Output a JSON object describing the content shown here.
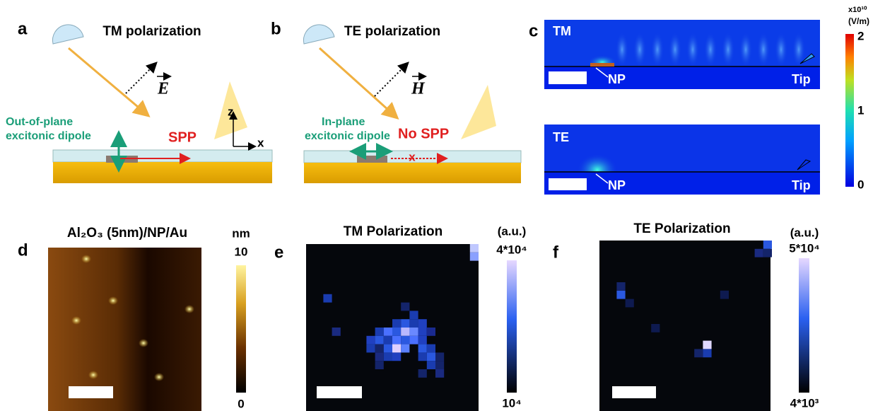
{
  "panel_a": {
    "label": "a",
    "title": "TM polarization",
    "field": "E",
    "dipole_label": [
      "Out-of-plane",
      "excitonic dipole"
    ],
    "mode": "SPP",
    "axis_z": "z",
    "axis_x": "x"
  },
  "panel_b": {
    "label": "b",
    "title": "TE polarization",
    "field": "H",
    "dipole_label": [
      "In-plane",
      "excitonic dipole"
    ],
    "mode": "No SPP",
    "cross": "x"
  },
  "panel_c": {
    "label": "c",
    "maps": [
      {
        "name": "TM",
        "np": "NP",
        "tip": "Tip"
      },
      {
        "name": "TE",
        "np": "NP",
        "tip": "Tip"
      }
    ],
    "colorbar": {
      "scale": "x10¹⁰",
      "unit": "(V/m)",
      "ticks": [
        "2",
        "1",
        "0"
      ]
    }
  },
  "panel_d": {
    "label": "d",
    "title": "Al₂O₃ (5nm)/NP/Au",
    "colorbar": {
      "unit": "nm",
      "max": "10",
      "min": "0"
    }
  },
  "panel_e": {
    "label": "e",
    "title": "TM Polarization",
    "colorbar": {
      "unit": "(a.u.)",
      "max": "4*10⁴",
      "min": "10⁴"
    }
  },
  "panel_f": {
    "label": "f",
    "title": "TE Polarization",
    "colorbar": {
      "unit": "(a.u.)",
      "max": "5*10⁴",
      "min": "4*10³"
    }
  }
}
